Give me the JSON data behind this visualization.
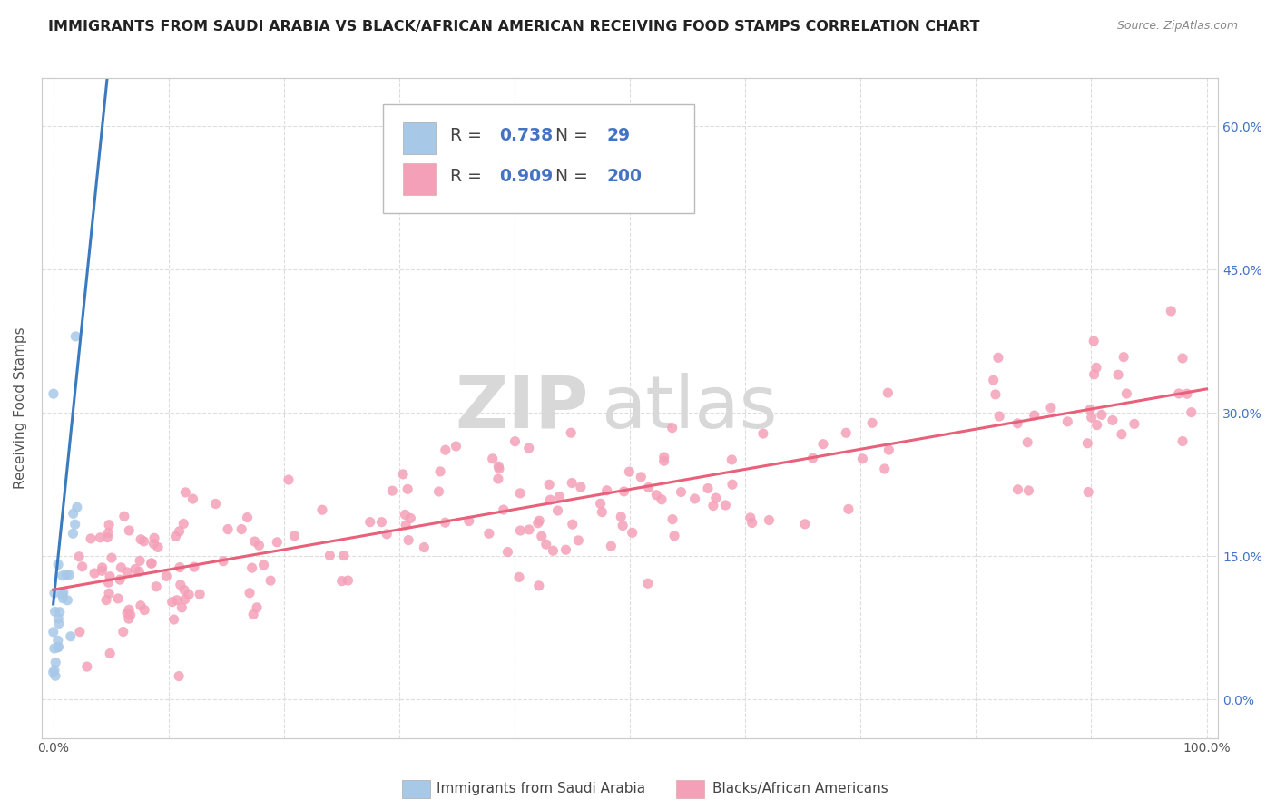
{
  "title": "IMMIGRANTS FROM SAUDI ARABIA VS BLACK/AFRICAN AMERICAN RECEIVING FOOD STAMPS CORRELATION CHART",
  "source": "Source: ZipAtlas.com",
  "ylabel": "Receiving Food Stamps",
  "xlabel": "",
  "xlim": [
    -0.01,
    1.01
  ],
  "ylim": [
    -0.04,
    0.65
  ],
  "right_yticks": [
    0.0,
    0.15,
    0.3,
    0.45,
    0.6
  ],
  "right_yticklabels": [
    "0.0%",
    "15.0%",
    "30.0%",
    "45.0%",
    "60.0%"
  ],
  "xticks": [
    0.0,
    0.1,
    0.2,
    0.3,
    0.4,
    0.5,
    0.6,
    0.7,
    0.8,
    0.9,
    1.0
  ],
  "xticklabels": [
    "0.0%",
    "",
    "",
    "",
    "",
    "",
    "",
    "",
    "",
    "",
    "100.0%"
  ],
  "blue_R": 0.738,
  "blue_N": 29,
  "pink_R": 0.909,
  "pink_N": 200,
  "blue_color": "#a8c8e8",
  "pink_color": "#f4a0b8",
  "blue_line_color": "#3a7abf",
  "pink_line_color": "#e8607a",
  "legend_label_blue": "Immigrants from Saudi Arabia",
  "legend_label_pink": "Blacks/African Americans",
  "watermark_zip": "ZIP",
  "watermark_atlas": "atlas",
  "background_color": "#ffffff",
  "grid_color": "#dddddd",
  "title_fontsize": 11.5,
  "axis_label_fontsize": 11,
  "tick_fontsize": 10,
  "blue_line_x": [
    0.0,
    0.048
  ],
  "blue_line_y": [
    0.1,
    0.665
  ],
  "pink_line_x": [
    0.0,
    1.0
  ],
  "pink_line_y": [
    0.115,
    0.325
  ],
  "right_tick_color": "#4472c4"
}
